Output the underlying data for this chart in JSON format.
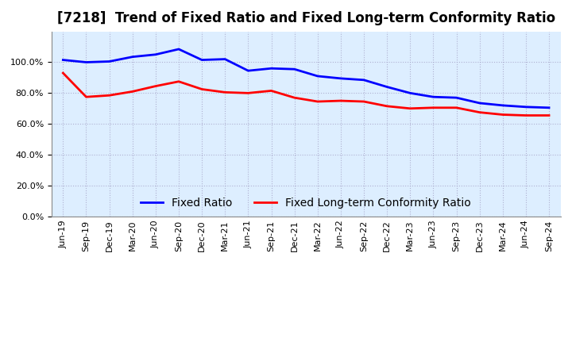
{
  "title": "[7218]  Trend of Fixed Ratio and Fixed Long-term Conformity Ratio",
  "x_labels": [
    "Jun-19",
    "Sep-19",
    "Dec-19",
    "Mar-20",
    "Jun-20",
    "Sep-20",
    "Dec-20",
    "Mar-21",
    "Jun-21",
    "Sep-21",
    "Dec-21",
    "Mar-22",
    "Jun-22",
    "Sep-22",
    "Dec-22",
    "Mar-23",
    "Jun-23",
    "Sep-23",
    "Dec-23",
    "Mar-24",
    "Jun-24",
    "Sep-24"
  ],
  "fixed_ratio": [
    101.5,
    100.0,
    100.5,
    103.5,
    105.0,
    108.5,
    101.5,
    102.0,
    94.5,
    96.0,
    95.5,
    91.0,
    89.5,
    88.5,
    84.0,
    80.0,
    77.5,
    77.0,
    73.5,
    72.0,
    71.0,
    70.5
  ],
  "fixed_lt_ratio": [
    93.0,
    77.5,
    78.5,
    81.0,
    84.5,
    87.5,
    82.5,
    80.5,
    80.0,
    81.5,
    77.0,
    74.5,
    75.0,
    74.5,
    71.5,
    70.0,
    70.5,
    70.5,
    67.5,
    66.0,
    65.5,
    65.5
  ],
  "fixed_ratio_color": "#0000FF",
  "fixed_lt_ratio_color": "#FF0000",
  "background_color": "#FFFFFF",
  "plot_bg_color": "#DDEEFF",
  "grid_color": "#AAAACC",
  "ylim": [
    0,
    120
  ],
  "yticks": [
    0,
    20,
    40,
    60,
    80,
    100
  ],
  "legend_labels": [
    "Fixed Ratio",
    "Fixed Long-term Conformity Ratio"
  ],
  "title_fontsize": 12,
  "tick_fontsize": 8,
  "legend_fontsize": 10
}
